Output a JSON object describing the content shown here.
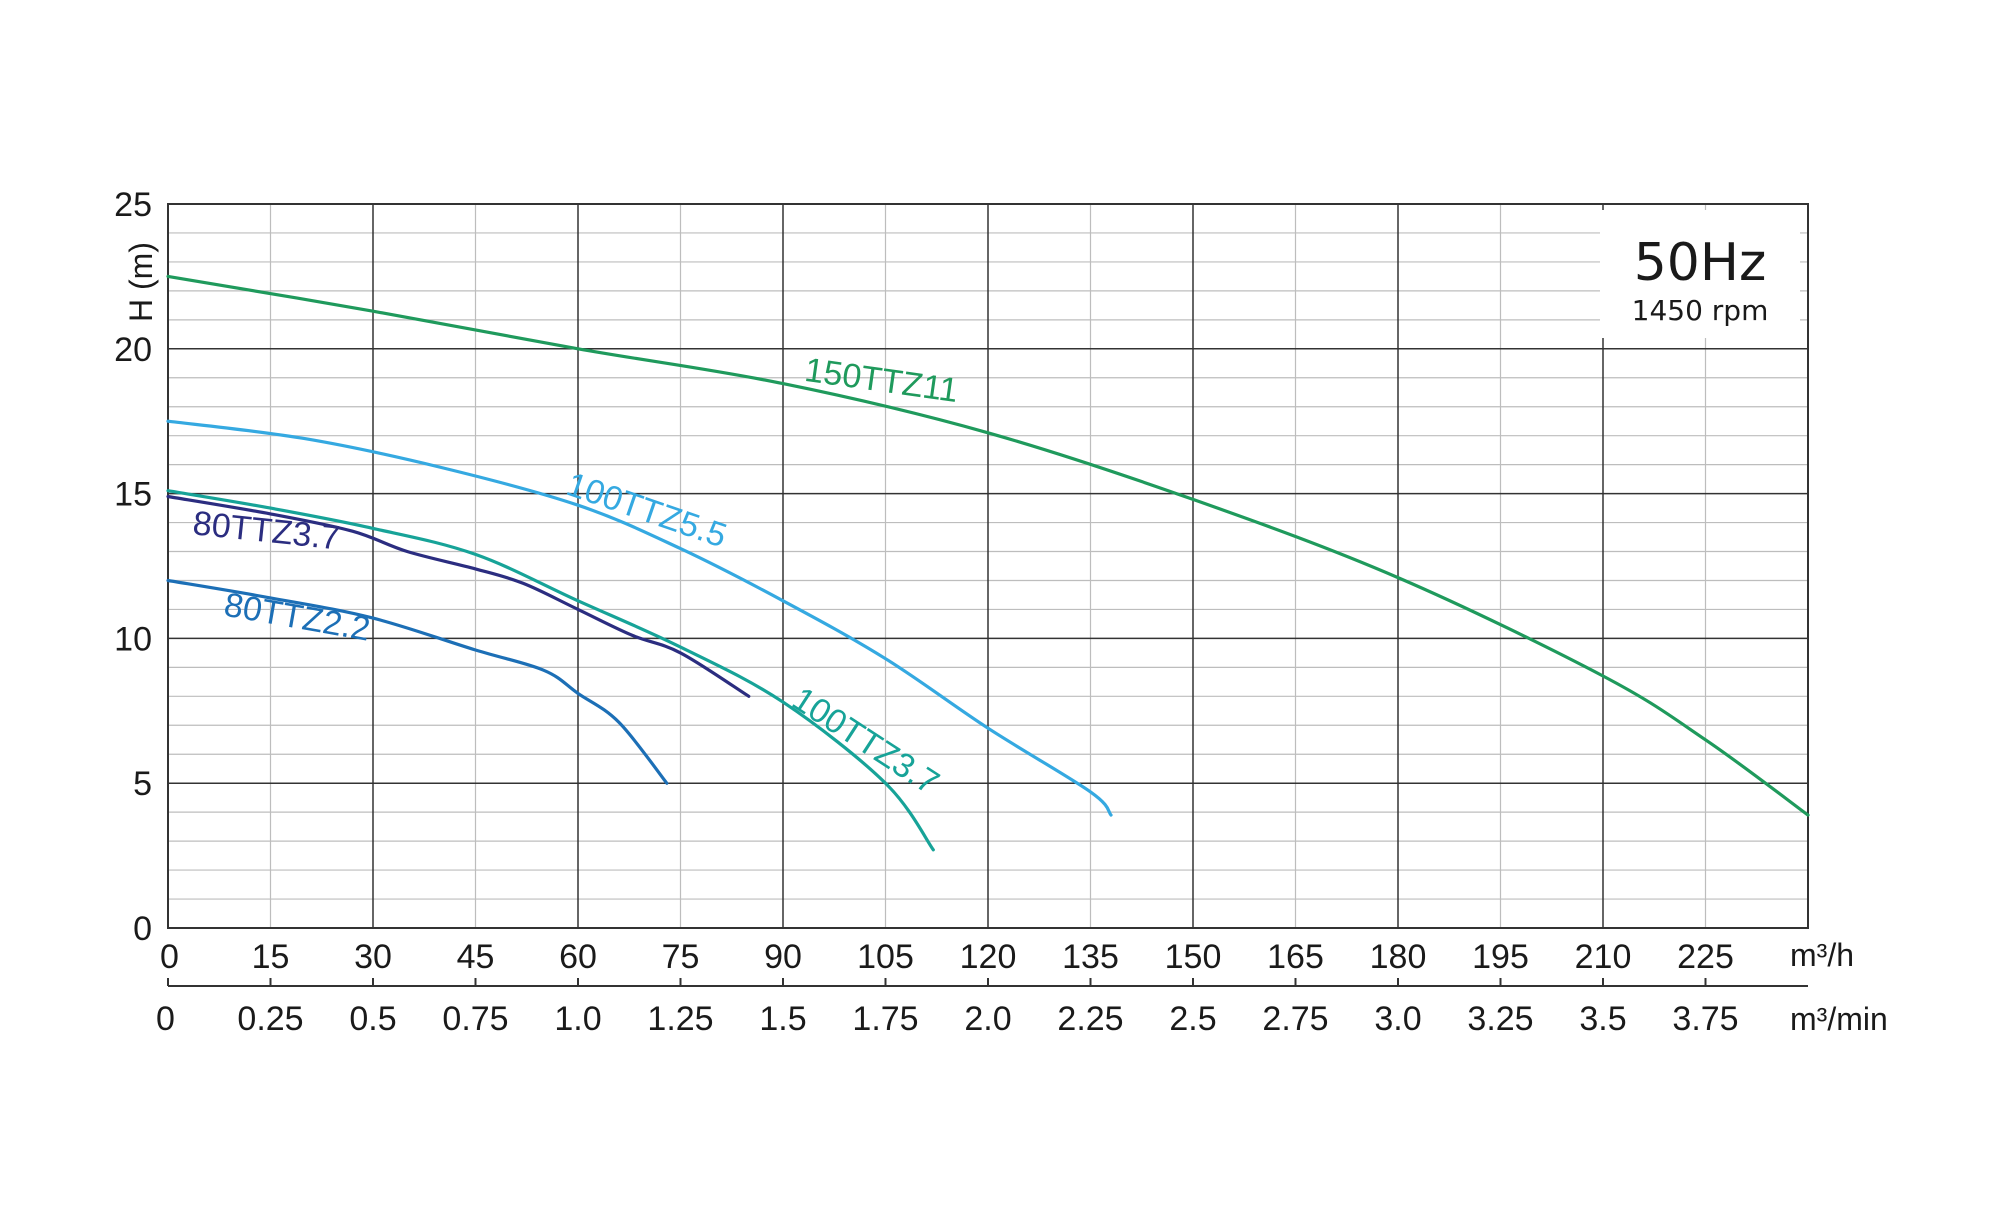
{
  "chart_data": {
    "type": "line",
    "frequency": "50Hz",
    "speed": "1450 rpm",
    "ylabel": "H (m)",
    "ylim": [
      0,
      25
    ],
    "yticks": [
      "0",
      "5",
      "10",
      "15",
      "20",
      "25"
    ],
    "xlim": [
      0,
      240
    ],
    "x_unit_primary": "m³/h",
    "x_unit_secondary": "m³/min",
    "xticks_primary": [
      "0",
      "15",
      "30",
      "45",
      "60",
      "75",
      "90",
      "105",
      "120",
      "135",
      "150",
      "165",
      "180",
      "195",
      "210",
      "225"
    ],
    "xticks_secondary": [
      "0",
      "0.25",
      "0.5",
      "0.75",
      "1.0",
      "1.25",
      "1.5",
      "1.75",
      "2.0",
      "2.25",
      "2.5",
      "2.75",
      "3.0",
      "3.25",
      "3.5",
      "3.75"
    ],
    "grid": true,
    "series": [
      {
        "name": "150TTZ11",
        "color": "#1f9a5c",
        "points": [
          [
            0,
            22.5
          ],
          [
            30,
            21.3
          ],
          [
            60,
            20.0
          ],
          [
            90,
            18.8
          ],
          [
            120,
            17.1
          ],
          [
            150,
            14.8
          ],
          [
            180,
            12.1
          ],
          [
            210,
            8.7
          ],
          [
            225,
            6.5
          ],
          [
            240,
            3.9
          ]
        ]
      },
      {
        "name": "100TTZ5.5",
        "color": "#35a9e1",
        "points": [
          [
            0,
            17.5
          ],
          [
            20,
            16.9
          ],
          [
            40,
            15.9
          ],
          [
            60,
            14.6
          ],
          [
            75,
            13.1
          ],
          [
            90,
            11.3
          ],
          [
            105,
            9.3
          ],
          [
            120,
            6.9
          ],
          [
            135,
            4.7
          ],
          [
            138,
            3.9
          ]
        ]
      },
      {
        "name": "100TTZ3.7",
        "color": "#17a398",
        "points": [
          [
            0,
            15.1
          ],
          [
            15,
            14.5
          ],
          [
            30,
            13.8
          ],
          [
            45,
            12.9
          ],
          [
            60,
            11.3
          ],
          [
            75,
            9.7
          ],
          [
            90,
            7.8
          ],
          [
            105,
            5.0
          ],
          [
            112,
            2.7
          ]
        ]
      },
      {
        "name": "80TTZ3.7",
        "color": "#2b2d80",
        "points": [
          [
            0,
            14.9
          ],
          [
            15,
            14.3
          ],
          [
            27,
            13.7
          ],
          [
            35,
            13.0
          ],
          [
            45,
            12.4
          ],
          [
            52,
            11.9
          ],
          [
            60,
            11.0
          ],
          [
            68,
            10.1
          ],
          [
            75,
            9.5
          ],
          [
            85,
            8.0
          ]
        ]
      },
      {
        "name": "80TTZ2.2",
        "color": "#1c6fb6",
        "points": [
          [
            0,
            12.0
          ],
          [
            15,
            11.4
          ],
          [
            30,
            10.7
          ],
          [
            45,
            9.6
          ],
          [
            55,
            8.9
          ],
          [
            60,
            8.1
          ],
          [
            66,
            7.1
          ],
          [
            73,
            5.0
          ]
        ]
      }
    ]
  }
}
